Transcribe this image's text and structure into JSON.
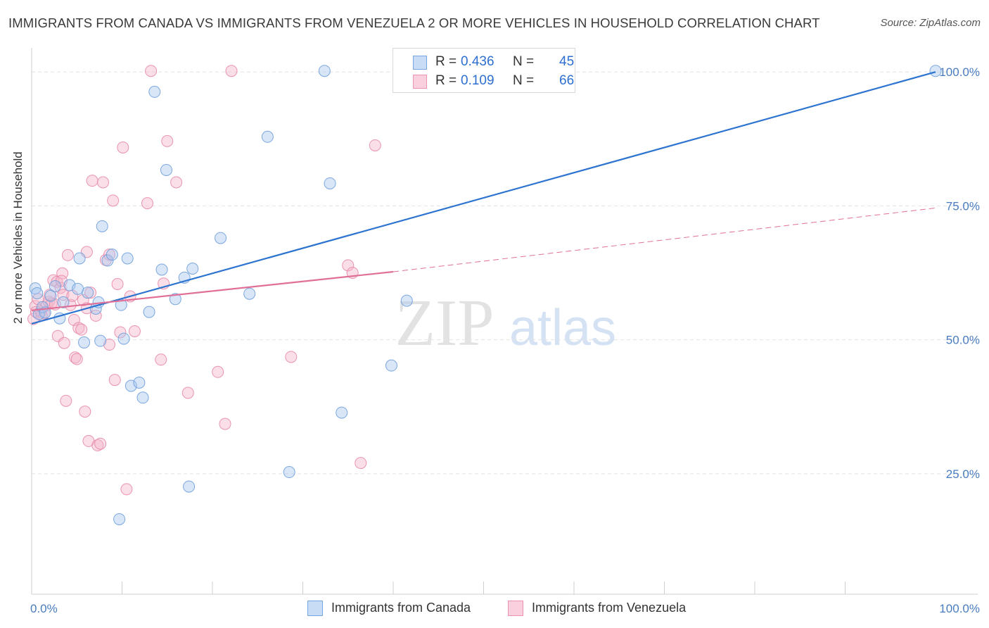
{
  "title": "IMMIGRANTS FROM CANADA VS IMMIGRANTS FROM VENEZUELA 2 OR MORE VEHICLES IN HOUSEHOLD CORRELATION CHART",
  "source": "Source: ZipAtlas.com",
  "watermark": {
    "zip": "ZIP",
    "atlas": "atlas"
  },
  "colors": {
    "canada": "#a8c8f0",
    "canada_line": "#2d74d0",
    "venezuela": "#f4b8cc",
    "venezuela_line": "#e07098",
    "axis_text": "#4a7cc0"
  },
  "legend": {
    "r_label": "R =",
    "n_label": "N =",
    "canada": {
      "r": "0.436",
      "n": "45"
    },
    "venezuela": {
      "r": "0.109",
      "n": "66"
    }
  },
  "chart_data": {
    "type": "scatter",
    "title": "IMMIGRANTS FROM CANADA VS IMMIGRANTS FROM VENEZUELA 2 OR MORE VEHICLES IN HOUSEHOLD CORRELATION CHART",
    "xlabel": "",
    "ylabel": "2 or more Vehicles in Household",
    "xlim": [
      0,
      100
    ],
    "ylim": [
      2.5,
      104.5
    ],
    "x_tick_labels": [
      "0.0%",
      "100.0%"
    ],
    "y_tick_labels": [
      "25.0%",
      "50.0%",
      "75.0%",
      "100.0%"
    ],
    "y_ticks": [
      25,
      50,
      75,
      100
    ],
    "grid": true,
    "legend_position": "top-center",
    "series": [
      {
        "name": "Immigrants from Canada",
        "points": [
          [
            0.4,
            59.6
          ],
          [
            0.6,
            58.7
          ],
          [
            0.8,
            54.8
          ],
          [
            1.2,
            56.1
          ],
          [
            1.5,
            55.1
          ],
          [
            2.1,
            58.2
          ],
          [
            3.1,
            54.0
          ],
          [
            2.6,
            60.0
          ],
          [
            4.2,
            60.2
          ],
          [
            5.1,
            59.5
          ],
          [
            5.3,
            65.2
          ],
          [
            6.2,
            58.8
          ],
          [
            7.1,
            55.8
          ],
          [
            7.4,
            57.0
          ],
          [
            7.8,
            71.2
          ],
          [
            8.4,
            64.8
          ],
          [
            8.9,
            65.9
          ],
          [
            9.7,
            16.5
          ],
          [
            9.9,
            56.5
          ],
          [
            10.2,
            50.2
          ],
          [
            10.6,
            65.2
          ],
          [
            11.0,
            41.4
          ],
          [
            11.9,
            42.0
          ],
          [
            12.3,
            39.2
          ],
          [
            13.0,
            55.2
          ],
          [
            13.6,
            96.3
          ],
          [
            14.4,
            63.1
          ],
          [
            14.9,
            81.7
          ],
          [
            15.9,
            57.6
          ],
          [
            16.9,
            61.6
          ],
          [
            17.4,
            22.6
          ],
          [
            17.8,
            63.3
          ],
          [
            20.9,
            69.0
          ],
          [
            24.1,
            58.6
          ],
          [
            26.1,
            87.9
          ],
          [
            28.5,
            25.3
          ],
          [
            32.4,
            100.2
          ],
          [
            33.0,
            79.2
          ],
          [
            34.3,
            36.4
          ],
          [
            39.8,
            45.2
          ],
          [
            41.5,
            57.3
          ],
          [
            100.0,
            100.2
          ],
          [
            7.6,
            49.8
          ],
          [
            5.8,
            49.5
          ],
          [
            3.5,
            57.0
          ]
        ]
      },
      {
        "name": "Immigrants from Venezuela",
        "points": [
          [
            0.2,
            53.9
          ],
          [
            0.4,
            56.3
          ],
          [
            0.5,
            55.2
          ],
          [
            0.7,
            57.6
          ],
          [
            1.0,
            55.3
          ],
          [
            1.4,
            54.9
          ],
          [
            1.7,
            56.5
          ],
          [
            1.9,
            57.1
          ],
          [
            2.2,
            56.8
          ],
          [
            2.4,
            61.1
          ],
          [
            2.6,
            56.6
          ],
          [
            2.8,
            60.8
          ],
          [
            2.9,
            50.7
          ],
          [
            3.2,
            59.7
          ],
          [
            3.4,
            62.4
          ],
          [
            3.5,
            58.4
          ],
          [
            3.6,
            49.4
          ],
          [
            3.8,
            38.6
          ],
          [
            4.0,
            65.8
          ],
          [
            4.3,
            56.5
          ],
          [
            4.7,
            53.7
          ],
          [
            4.8,
            46.7
          ],
          [
            5.0,
            46.4
          ],
          [
            5.2,
            52.2
          ],
          [
            5.5,
            51.9
          ],
          [
            5.7,
            57.4
          ],
          [
            5.9,
            36.6
          ],
          [
            6.1,
            66.4
          ],
          [
            6.3,
            31.1
          ],
          [
            6.5,
            58.8
          ],
          [
            6.7,
            79.7
          ],
          [
            7.3,
            30.3
          ],
          [
            7.6,
            30.6
          ],
          [
            7.9,
            79.4
          ],
          [
            8.2,
            64.9
          ],
          [
            8.6,
            49.1
          ],
          [
            9.0,
            76.0
          ],
          [
            9.2,
            42.5
          ],
          [
            9.5,
            60.4
          ],
          [
            9.8,
            51.4
          ],
          [
            10.1,
            85.9
          ],
          [
            10.5,
            22.1
          ],
          [
            10.9,
            58.1
          ],
          [
            11.4,
            51.6
          ],
          [
            12.8,
            75.5
          ],
          [
            13.2,
            100.2
          ],
          [
            14.3,
            46.3
          ],
          [
            14.6,
            60.5
          ],
          [
            15.0,
            87.1
          ],
          [
            16.0,
            79.4
          ],
          [
            17.3,
            40.1
          ],
          [
            20.6,
            44.0
          ],
          [
            21.4,
            34.3
          ],
          [
            22.1,
            100.2
          ],
          [
            28.7,
            46.8
          ],
          [
            35.0,
            63.9
          ],
          [
            35.5,
            62.5
          ],
          [
            36.4,
            27.0
          ],
          [
            38.0,
            86.3
          ],
          [
            3.3,
            61.0
          ],
          [
            8.6,
            65.9
          ],
          [
            6.1,
            55.9
          ],
          [
            7.1,
            54.5
          ],
          [
            2.0,
            58.4
          ],
          [
            1.1,
            54.6
          ],
          [
            4.5,
            58.2
          ]
        ]
      }
    ],
    "trend_lines": [
      {
        "series": "Immigrants from Canada",
        "x": [
          0,
          100
        ],
        "y": [
          53.0,
          100.0
        ],
        "style": "solid"
      },
      {
        "series": "Immigrants from Venezuela",
        "x": [
          0,
          40
        ],
        "y": [
          55.5,
          62.7
        ],
        "style": "solid"
      },
      {
        "series": "Immigrants from Venezuela",
        "x": [
          40,
          100
        ],
        "y": [
          62.7,
          74.6
        ],
        "style": "dashed"
      }
    ]
  },
  "bottom_legend": {
    "canada": "Immigrants from Canada",
    "venezuela": "Immigrants from Venezuela"
  }
}
